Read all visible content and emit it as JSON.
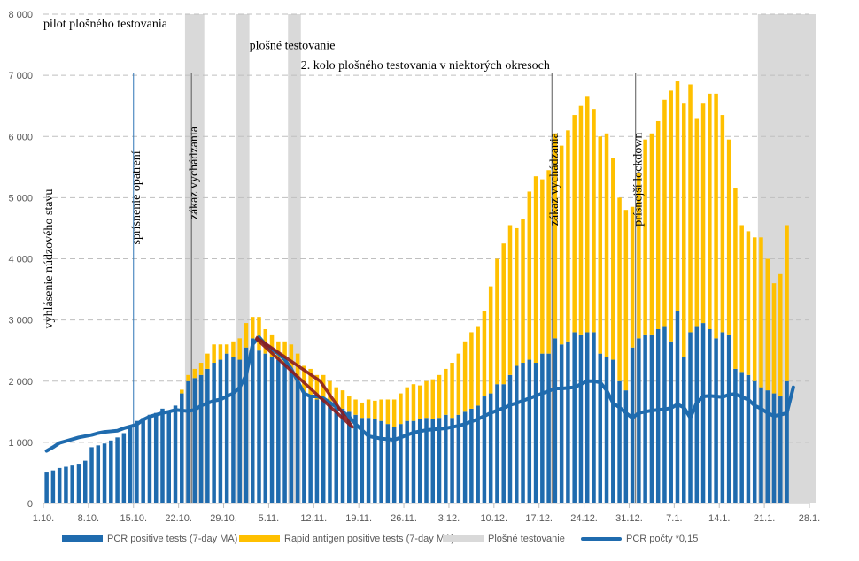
{
  "chart_data": {
    "type": "bar",
    "stacked": true,
    "title": "",
    "xlabel": "",
    "ylabel": "",
    "ylim": [
      0,
      8000
    ],
    "grid": true,
    "x_start_label": "1.10.",
    "x_range_days": [
      0,
      119
    ],
    "y_ticks": [
      "0",
      "1 000",
      "2 000",
      "3 000",
      "4 000",
      "5 000",
      "6 000",
      "7 000",
      "8 000"
    ],
    "y_tick_values": [
      0,
      1000,
      2000,
      3000,
      4000,
      5000,
      6000,
      7000,
      8000
    ],
    "x_ticks": [
      {
        "day": 0,
        "label": "1.10."
      },
      {
        "day": 7,
        "label": "8.10."
      },
      {
        "day": 14,
        "label": "15.10."
      },
      {
        "day": 21,
        "label": "22.10."
      },
      {
        "day": 28,
        "label": "29.10."
      },
      {
        "day": 35,
        "label": "5.11."
      },
      {
        "day": 42,
        "label": "12.11."
      },
      {
        "day": 49,
        "label": "19.11."
      },
      {
        "day": 56,
        "label": "26.11."
      },
      {
        "day": 63,
        "label": "3.12."
      },
      {
        "day": 70,
        "label": "10.12."
      },
      {
        "day": 77,
        "label": "17.12."
      },
      {
        "day": 84,
        "label": "24.12."
      },
      {
        "day": 91,
        "label": "31.12."
      },
      {
        "day": 98,
        "label": "7.1."
      },
      {
        "day": 105,
        "label": "14.1."
      },
      {
        "day": 112,
        "label": "21.1."
      },
      {
        "day": 119,
        "label": "28.1."
      }
    ],
    "series": [
      {
        "name": "PCR positive tests (7-day MA)",
        "color": "#1F6BAE",
        "kind": "bar",
        "values": [
          520,
          540,
          580,
          600,
          620,
          650,
          700,
          920,
          950,
          980,
          1030,
          1080,
          1150,
          1250,
          1350,
          1400,
          1450,
          1480,
          1550,
          1500,
          1600,
          1800,
          2000,
          2050,
          2100,
          2200,
          2300,
          2350,
          2450,
          2400,
          2350,
          2550,
          2700,
          2500,
          2450,
          2400,
          2350,
          2300,
          2200,
          2000,
          1800,
          1750,
          1700,
          1700,
          1650,
          1600,
          1550,
          1500,
          1450,
          1400,
          1400,
          1380,
          1350,
          1300,
          1250,
          1300,
          1350,
          1350,
          1380,
          1400,
          1380,
          1400,
          1450,
          1400,
          1450,
          1500,
          1550,
          1600,
          1750,
          1800,
          1950,
          1950,
          2100,
          2250,
          2300,
          2350,
          2300,
          2450,
          2450,
          2700,
          2600,
          2650,
          2800,
          2750,
          2800,
          2800,
          2450,
          2400,
          2350,
          2000,
          1850,
          2550,
          2700,
          2750,
          2750,
          2850,
          2900,
          2650,
          3150,
          2400,
          2800,
          2900,
          2950,
          2850,
          2700,
          2800,
          2750,
          2200,
          2150,
          2100,
          2000,
          1900,
          1850,
          1800,
          1750,
          2000
        ]
      },
      {
        "name": "Rapid antigen positive tests (7-day MA)",
        "color": "#FFC000",
        "kind": "bar",
        "values": [
          0,
          0,
          0,
          0,
          0,
          0,
          0,
          0,
          0,
          0,
          0,
          0,
          0,
          0,
          0,
          0,
          0,
          0,
          0,
          0,
          0,
          60,
          100,
          150,
          200,
          250,
          300,
          250,
          150,
          250,
          350,
          400,
          350,
          550,
          400,
          350,
          300,
          350,
          400,
          450,
          450,
          450,
          400,
          400,
          350,
          300,
          300,
          250,
          250,
          250,
          300,
          300,
          350,
          400,
          450,
          500,
          550,
          600,
          550,
          600,
          650,
          700,
          750,
          900,
          1000,
          1150,
          1250,
          1300,
          1400,
          1750,
          2050,
          2300,
          2450,
          2250,
          2350,
          2750,
          3050,
          2850,
          3000,
          3350,
          3250,
          3450,
          3550,
          3750,
          3850,
          3650,
          3550,
          3650,
          3300,
          3000,
          2950,
          2300,
          2700,
          3200,
          3300,
          3400,
          3700,
          4100,
          3750,
          4150,
          4050,
          3400,
          3600,
          3850,
          4000,
          3550,
          3200,
          2950,
          2400,
          2350,
          2350,
          2450,
          2150,
          1800,
          2000,
          2550
        ]
      },
      {
        "name": "Plošné testovanie",
        "color": "#D9D9D9",
        "kind": "band",
        "ranges": [
          [
            22,
            25
          ],
          [
            30,
            32
          ],
          [
            38,
            40
          ],
          [
            111,
            120
          ]
        ]
      },
      {
        "name": "PCR počty *0,15",
        "color": "#1F6BAE",
        "kind": "line",
        "values": [
          860,
          920,
          990,
          1020,
          1050,
          1080,
          1100,
          1120,
          1150,
          1170,
          1180,
          1190,
          1230,
          1260,
          1290,
          1370,
          1420,
          1450,
          1480,
          1500,
          1530,
          1520,
          1510,
          1530,
          1600,
          1640,
          1680,
          1700,
          1750,
          1800,
          1900,
          2100,
          2600,
          2720,
          2600,
          2520,
          2450,
          2350,
          2200,
          2000,
          1800,
          1750,
          1750,
          1720,
          1650,
          1580,
          1500,
          1420,
          1300,
          1200,
          1100,
          1080,
          1060,
          1050,
          1040,
          1080,
          1120,
          1160,
          1180,
          1200,
          1210,
          1220,
          1230,
          1250,
          1270,
          1300,
          1340,
          1380,
          1430,
          1480,
          1520,
          1560,
          1610,
          1640,
          1680,
          1720,
          1760,
          1800,
          1840,
          1880,
          1880,
          1890,
          1900,
          1950,
          2000,
          2000,
          1980,
          1850,
          1640,
          1570,
          1480,
          1400,
          1480,
          1500,
          1520,
          1530,
          1540,
          1560,
          1620,
          1570,
          1400,
          1650,
          1750,
          1760,
          1750,
          1740,
          1780,
          1790,
          1740,
          1700,
          1600,
          1550,
          1480,
          1430,
          1450,
          1480,
          1900
        ]
      },
      {
        "name": "trend-highlight",
        "color": "#8B1C1C",
        "kind": "overlay",
        "points": [
          [
            33,
            2720
          ],
          [
            43,
            2000
          ],
          [
            48,
            1250
          ],
          [
            33,
            2700
          ]
        ]
      }
    ],
    "annotations": [
      {
        "text": "pilot plošného testovania",
        "day": 0,
        "value": 7780,
        "orientation": "horizontal"
      },
      {
        "text": "plošné testovanie",
        "day": 32,
        "value": 7430,
        "orientation": "horizontal"
      },
      {
        "text": "2. kolo plošného testovania v niektorých okresoch",
        "day": 40,
        "value": 7100,
        "orientation": "horizontal"
      },
      {
        "text": "vyhlásenie núdzového stavu",
        "day": 0,
        "value": 4000,
        "orientation": "vertical"
      },
      {
        "text": "sprísnenie opatrení",
        "day": 14,
        "value": 5000,
        "orientation": "vertical",
        "line": true
      },
      {
        "text": "zákaz vychádzania",
        "day": 23,
        "value": 5400,
        "orientation": "vertical",
        "line": true
      },
      {
        "text": "zákaz vychádzania",
        "day": 79,
        "value": 5300,
        "orientation": "vertical",
        "line": true
      },
      {
        "text": "prísnejší lockdown",
        "day": 92,
        "value": 5300,
        "orientation": "vertical",
        "line": true
      }
    ],
    "legend_position": "bottom"
  },
  "legend": {
    "items": [
      {
        "label": "PCR positive tests (7-day MA)",
        "color": "#1F6BAE",
        "kind": "bar"
      },
      {
        "label": "Rapid antigen positive tests (7-day MA)",
        "color": "#FFC000",
        "kind": "bar"
      },
      {
        "label": "Plošné testovanie",
        "color": "#D9D9D9",
        "kind": "bar"
      },
      {
        "label": "PCR počty *0,15",
        "color": "#1F6BAE",
        "kind": "line"
      }
    ]
  }
}
